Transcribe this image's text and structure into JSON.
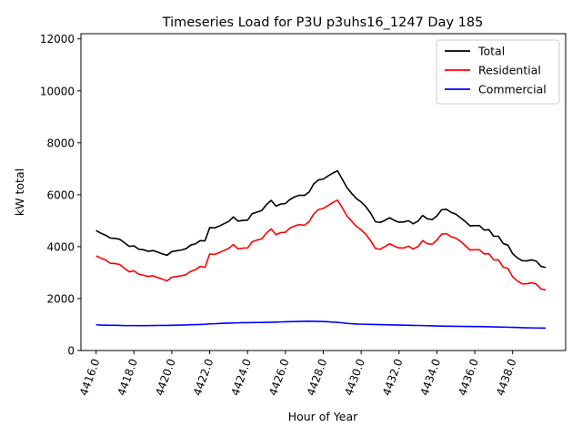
{
  "chart_data": {
    "type": "line",
    "title": "Timeseries Load for P3U p3uhs16_1247  Day 185",
    "xlabel": "Hour of Year",
    "ylabel": "kW total",
    "xlim": [
      4415.2,
      4440.8
    ],
    "ylim": [
      0,
      12200
    ],
    "xticks": [
      4416,
      4418,
      4420,
      4422,
      4424,
      4426,
      4428,
      4430,
      4432,
      4434,
      4436,
      4438
    ],
    "xtick_labels": [
      "4416.0",
      "4418.0",
      "4420.0",
      "4422.0",
      "4424.0",
      "4426.0",
      "4428.0",
      "4430.0",
      "4432.0",
      "4434.0",
      "4436.0",
      "4438.0"
    ],
    "yticks": [
      0,
      2000,
      4000,
      6000,
      8000,
      10000,
      12000
    ],
    "ytick_labels": [
      "0",
      "2000",
      "4000",
      "6000",
      "8000",
      "10000",
      "12000"
    ],
    "legend_position": "top-right",
    "grid": false,
    "x_start": 4416,
    "x_step": 0.25,
    "series": [
      {
        "name": "Total",
        "color": "#000000",
        "values": [
          4620,
          4520,
          4440,
          4330,
          4320,
          4280,
          4150,
          4010,
          4030,
          3900,
          3880,
          3820,
          3850,
          3790,
          3720,
          3670,
          3810,
          3840,
          3870,
          3920,
          4060,
          4110,
          4230,
          4220,
          4730,
          4720,
          4790,
          4880,
          4970,
          5140,
          4980,
          5010,
          5020,
          5270,
          5330,
          5390,
          5620,
          5780,
          5560,
          5640,
          5660,
          5820,
          5920,
          5980,
          5970,
          6100,
          6420,
          6570,
          6600,
          6720,
          6830,
          6920,
          6600,
          6270,
          6050,
          5850,
          5720,
          5540,
          5290,
          4960,
          4930,
          5010,
          5110,
          5010,
          4940,
          4950,
          5000,
          4880,
          4980,
          5200,
          5070,
          5040,
          5180,
          5420,
          5440,
          5320,
          5250,
          5110,
          4970,
          4800,
          4810,
          4810,
          4640,
          4650,
          4400,
          4400,
          4120,
          4060,
          3730,
          3570,
          3460,
          3450,
          3490,
          3440,
          3240,
          3200
        ]
      },
      {
        "name": "Residential",
        "color": "#ff0000",
        "values": [
          3640,
          3560,
          3490,
          3360,
          3350,
          3310,
          3170,
          3030,
          3070,
          2940,
          2900,
          2850,
          2880,
          2810,
          2750,
          2680,
          2820,
          2850,
          2880,
          2920,
          3050,
          3110,
          3240,
          3200,
          3720,
          3700,
          3770,
          3850,
          3930,
          4080,
          3910,
          3940,
          3950,
          4190,
          4250,
          4300,
          4520,
          4680,
          4460,
          4540,
          4550,
          4720,
          4800,
          4850,
          4820,
          4960,
          5260,
          5430,
          5470,
          5580,
          5700,
          5790,
          5500,
          5180,
          4980,
          4780,
          4650,
          4470,
          4230,
          3930,
          3900,
          4000,
          4110,
          4020,
          3950,
          3950,
          4020,
          3910,
          4000,
          4230,
          4110,
          4090,
          4250,
          4480,
          4500,
          4380,
          4330,
          4200,
          4040,
          3870,
          3880,
          3880,
          3720,
          3730,
          3490,
          3490,
          3210,
          3160,
          2840,
          2680,
          2570,
          2570,
          2610,
          2560,
          2370,
          2330
        ]
      },
      {
        "name": "Commercial",
        "color": "#0000ff",
        "values": [
          990,
          980,
          975,
          970,
          970,
          965,
          960,
          960,
          960,
          958,
          958,
          960,
          962,
          964,
          966,
          968,
          972,
          976,
          980,
          985,
          990,
          996,
          1002,
          1010,
          1025,
          1030,
          1040,
          1050,
          1055,
          1060,
          1065,
          1070,
          1072,
          1075,
          1078,
          1080,
          1085,
          1090,
          1095,
          1100,
          1105,
          1110,
          1115,
          1120,
          1125,
          1128,
          1125,
          1120,
          1115,
          1105,
          1095,
          1085,
          1065,
          1045,
          1030,
          1020,
          1012,
          1008,
          1004,
          1000,
          996,
          992,
          988,
          984,
          980,
          976,
          972,
          968,
          964,
          960,
          955,
          950,
          945,
          940,
          937,
          934,
          932,
          930,
          928,
          926,
          924,
          922,
          918,
          914,
          910,
          906,
          902,
          898,
          892,
          886,
          880,
          875,
          872,
          868,
          864,
          860
        ]
      }
    ]
  }
}
